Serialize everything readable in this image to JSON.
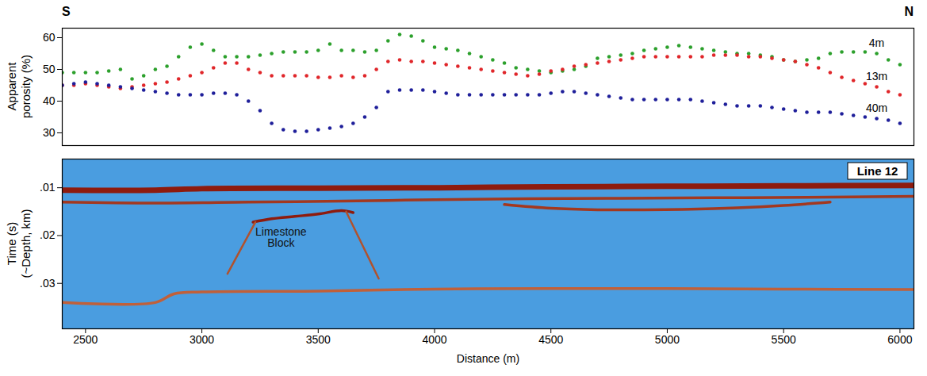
{
  "chart_data": [
    {
      "type": "scatter",
      "direction_labels": [
        "S",
        "N"
      ],
      "ylabel": "Apparent\nporosity (%)",
      "x": [
        2400,
        2450,
        2500,
        2550,
        2600,
        2650,
        2700,
        2750,
        2800,
        2850,
        2900,
        2950,
        3000,
        3050,
        3100,
        3150,
        3200,
        3250,
        3300,
        3350,
        3400,
        3450,
        3500,
        3550,
        3600,
        3650,
        3700,
        3750,
        3800,
        3850,
        3900,
        3950,
        4000,
        4050,
        4100,
        4150,
        4200,
        4250,
        4300,
        4350,
        4400,
        4450,
        4500,
        4550,
        4600,
        4650,
        4700,
        4750,
        4800,
        4850,
        4900,
        4950,
        5000,
        5050,
        5100,
        5150,
        5200,
        5250,
        5300,
        5350,
        5400,
        5450,
        5500,
        5550,
        5600,
        5650,
        5700,
        5750,
        5800,
        5850,
        5900,
        5950,
        6000
      ],
      "series": [
        {
          "name": "4m",
          "color": "#2ca02c",
          "marker": "circle",
          "values": [
            49,
            49,
            49,
            49,
            49.5,
            50,
            47,
            48,
            50,
            51,
            54,
            57,
            58,
            56,
            54,
            54,
            54,
            54.5,
            55,
            55.5,
            55.5,
            55.5,
            56,
            58,
            56,
            56,
            55.5,
            56,
            59,
            61,
            60.5,
            59,
            57,
            56.5,
            56,
            55,
            54,
            53,
            52,
            50.5,
            50,
            49.5,
            49,
            49.5,
            50,
            51,
            53.5,
            54,
            54.5,
            55,
            56,
            56.5,
            57,
            57.5,
            57,
            56.5,
            56,
            55.5,
            55,
            55,
            54.5,
            54,
            53,
            52.5,
            53,
            53.5,
            55,
            55.5,
            55.5,
            55.5,
            55,
            53,
            51.5
          ]
        },
        {
          "name": "13m",
          "color": "#e0262a",
          "marker": "circle",
          "values": [
            45,
            45,
            45.5,
            45,
            44.5,
            44,
            44.5,
            45,
            45.5,
            46,
            47,
            48,
            49,
            50.5,
            52,
            52,
            50,
            49,
            48,
            48,
            48,
            48,
            47.5,
            47.5,
            48,
            47.5,
            48,
            50,
            52.5,
            53,
            52.5,
            52.5,
            52,
            51.5,
            51,
            50.5,
            50,
            49.5,
            49,
            48.5,
            48,
            48.5,
            49.5,
            50,
            51,
            51.5,
            52,
            52.5,
            53,
            53.5,
            54,
            54,
            54,
            54,
            54,
            54,
            54.5,
            54.5,
            54.5,
            54,
            54,
            53.5,
            53,
            52.5,
            51.5,
            50.5,
            49,
            47.5,
            46.5,
            45.5,
            44.5,
            43,
            42
          ]
        },
        {
          "name": "40m",
          "color": "#1f1f9a",
          "marker": "circle",
          "values": [
            45,
            45.5,
            46,
            45.5,
            45,
            44.5,
            44,
            43.5,
            43,
            42.5,
            42,
            42,
            42,
            42.5,
            42.5,
            42,
            40,
            37,
            33,
            31,
            30.5,
            30.5,
            31,
            31.5,
            32,
            33,
            35,
            38,
            43,
            43.5,
            43.5,
            43.5,
            43,
            42.5,
            42,
            42,
            42,
            42,
            42,
            42,
            42,
            42,
            42.5,
            43,
            43,
            42.5,
            42,
            41.5,
            41,
            40.5,
            40.5,
            40.5,
            40.5,
            40.5,
            40.5,
            40,
            39.5,
            39,
            38.5,
            38.5,
            38.5,
            38,
            37.5,
            37,
            36.5,
            36.5,
            36.5,
            36,
            35.5,
            35,
            34.5,
            34,
            33
          ]
        }
      ],
      "xlim": [
        2400,
        6060
      ],
      "ylim": [
        26,
        63
      ],
      "yticks": [
        30,
        40,
        50,
        60
      ],
      "tick_labels": "y"
    },
    {
      "type": "seismic_section",
      "title": "Line 12",
      "xlabel": "Distance (m)",
      "ylabel": "Time (s)\n(~Depth, km)",
      "annotations": [
        {
          "text": "Limestone\nBlock",
          "x": 3340,
          "y": 0.0205
        }
      ],
      "xlim": [
        2400,
        6060
      ],
      "ylim": [
        0.004,
        0.0395
      ],
      "xticks": [
        2500,
        3000,
        3500,
        4000,
        4500,
        5000,
        5500,
        6000
      ],
      "yticks": [
        {
          "value": 0.01,
          "label": ".01"
        },
        {
          "value": 0.02,
          "label": ".02"
        },
        {
          "value": 0.03,
          "label": ".03"
        }
      ],
      "reflectors": [
        {
          "color": "#8e1b0e",
          "x": [
            2400,
            2800,
            3000,
            3500,
            4000,
            4500,
            5000,
            5500,
            6060
          ],
          "y": [
            0.0105,
            0.0105,
            0.0102,
            0.0101,
            0.01,
            0.0098,
            0.0097,
            0.0096,
            0.0095
          ]
        },
        {
          "color": "#a3381f",
          "x": [
            2400,
            2800,
            3200,
            3600,
            4000,
            4400,
            4800,
            5200,
            5600,
            6060
          ],
          "y": [
            0.013,
            0.0132,
            0.013,
            0.0128,
            0.0125,
            0.0123,
            0.0122,
            0.0121,
            0.012,
            0.0118
          ]
        },
        {
          "color": "#a3381f",
          "x": [
            4300,
            4500,
            4700,
            4900,
            5100,
            5300,
            5500,
            5700
          ],
          "y": [
            0.0135,
            0.0143,
            0.0146,
            0.0146,
            0.0145,
            0.0142,
            0.0137,
            0.013
          ]
        },
        {
          "color": "#8e1b0e",
          "x": [
            3220,
            3300,
            3400,
            3500,
            3600,
            3650
          ],
          "y": [
            0.0172,
            0.0165,
            0.016,
            0.0155,
            0.0148,
            0.0152
          ]
        },
        {
          "color": "#b0522e",
          "x": [
            3230,
            3110
          ],
          "y": [
            0.0172,
            0.028
          ]
        },
        {
          "color": "#b0522e",
          "x": [
            3620,
            3760
          ],
          "y": [
            0.015,
            0.029
          ]
        },
        {
          "color": "#c0603a",
          "x": [
            2400,
            2800,
            2880,
            3000,
            3500,
            4000,
            4500,
            5000,
            5500,
            6060
          ],
          "y": [
            0.034,
            0.034,
            0.0322,
            0.0318,
            0.0316,
            0.0312,
            0.0311,
            0.0311,
            0.0312,
            0.0313
          ]
        }
      ]
    }
  ]
}
